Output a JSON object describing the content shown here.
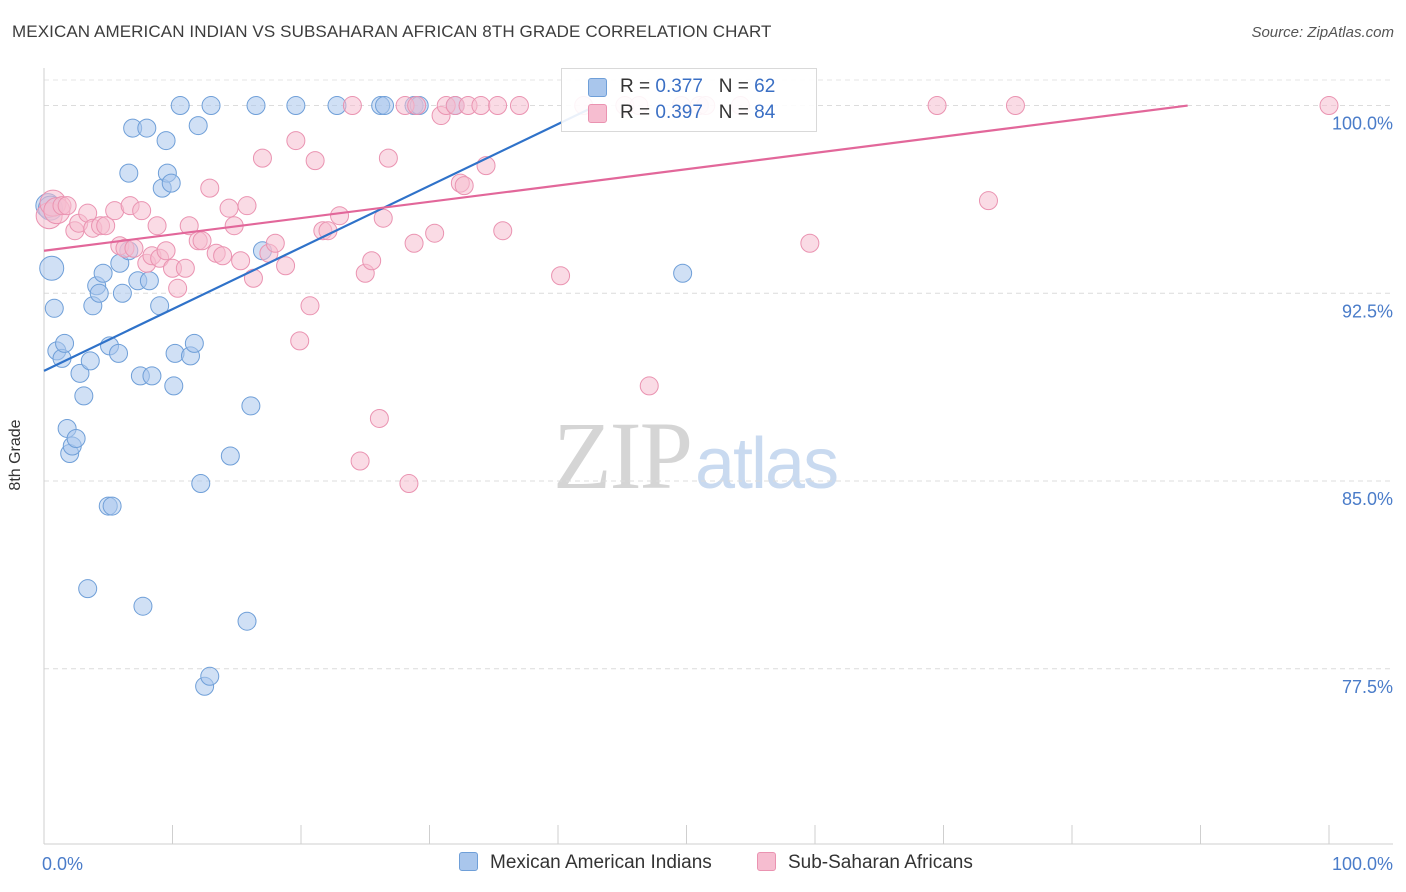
{
  "header": {
    "title": "MEXICAN AMERICAN INDIAN VS SUBSAHARAN AFRICAN 8TH GRADE CORRELATION CHART",
    "source": "Source: ZipAtlas.com"
  },
  "watermark": {
    "zip": "ZIP",
    "atlas": "atlas"
  },
  "legend": {
    "r_label": "R =",
    "n_label": "N =",
    "series1": {
      "r": "0.377",
      "n": "62"
    },
    "series2": {
      "r": "0.397",
      "n": "84"
    }
  },
  "bottom_legend": {
    "series1": "Mexican American Indians",
    "series2": "Sub-Saharan Africans"
  },
  "colors": {
    "blue_fill": "#a9c6ec",
    "blue_stroke": "#6f9fd8",
    "blue_line": "#2f72c9",
    "pink_fill": "#f6bdd0",
    "pink_stroke": "#ea93b1",
    "pink_line": "#e2679a",
    "tick_text": "#4a7cc9"
  },
  "chart_data": {
    "type": "scatter",
    "title": "MEXICAN AMERICAN INDIAN VS SUBSAHARAN AFRICAN 8TH GRADE CORRELATION CHART",
    "xlabel": "",
    "ylabel": "8th Grade",
    "xlim": [
      0,
      100
    ],
    "ylim": [
      70.5,
      101.5
    ],
    "x_tick_labels": [
      "0.0%",
      "100.0%"
    ],
    "y_ticks": [
      100.0,
      92.5,
      85.0,
      77.5
    ],
    "y_tick_labels": [
      "100.0%",
      "92.5%",
      "85.0%",
      "77.5%"
    ],
    "series": [
      {
        "name": "Mexican American Indians",
        "r": 0.377,
        "n": 62,
        "trend": {
          "x0": 0,
          "y0": 89.4,
          "x1": 43,
          "y1": 100.0
        },
        "points": [
          [
            0.3,
            96.0
          ],
          [
            0.5,
            95.9
          ],
          [
            0.6,
            93.5
          ],
          [
            0.8,
            91.9
          ],
          [
            1.0,
            90.2
          ],
          [
            1.4,
            89.9
          ],
          [
            1.6,
            90.5
          ],
          [
            1.8,
            87.1
          ],
          [
            2.0,
            86.1
          ],
          [
            2.2,
            86.4
          ],
          [
            2.5,
            86.7
          ],
          [
            2.8,
            89.3
          ],
          [
            3.1,
            88.4
          ],
          [
            3.4,
            80.7
          ],
          [
            3.6,
            89.8
          ],
          [
            3.8,
            92.0
          ],
          [
            4.1,
            92.8
          ],
          [
            4.3,
            92.5
          ],
          [
            4.6,
            93.3
          ],
          [
            5.0,
            84.0
          ],
          [
            5.3,
            84.0
          ],
          [
            5.1,
            90.4
          ],
          [
            5.8,
            90.1
          ],
          [
            5.9,
            93.7
          ],
          [
            6.1,
            92.5
          ],
          [
            6.6,
            94.2
          ],
          [
            6.6,
            97.3
          ],
          [
            6.9,
            99.1
          ],
          [
            7.3,
            93.0
          ],
          [
            7.5,
            89.2
          ],
          [
            7.7,
            80.0
          ],
          [
            8.0,
            99.1
          ],
          [
            8.2,
            93.0
          ],
          [
            8.4,
            89.2
          ],
          [
            9.0,
            92.0
          ],
          [
            9.2,
            96.7
          ],
          [
            9.5,
            98.6
          ],
          [
            9.6,
            97.3
          ],
          [
            9.9,
            96.9
          ],
          [
            10.1,
            88.8
          ],
          [
            10.2,
            90.1
          ],
          [
            10.6,
            100.0
          ],
          [
            11.4,
            90.0
          ],
          [
            11.7,
            90.5
          ],
          [
            12.0,
            99.2
          ],
          [
            12.2,
            84.9
          ],
          [
            12.5,
            76.8
          ],
          [
            12.9,
            77.2
          ],
          [
            13.0,
            100.0
          ],
          [
            14.5,
            86.0
          ],
          [
            15.8,
            79.4
          ],
          [
            16.1,
            88.0
          ],
          [
            16.5,
            100.0
          ],
          [
            17.0,
            94.2
          ],
          [
            19.6,
            100.0
          ],
          [
            22.8,
            100.0
          ],
          [
            26.2,
            100.0
          ],
          [
            26.5,
            100.0
          ],
          [
            28.8,
            100.0
          ],
          [
            29.2,
            100.0
          ],
          [
            32.0,
            100.0
          ],
          [
            49.7,
            93.3
          ]
        ]
      },
      {
        "name": "Sub-Saharan Africans",
        "r": 0.397,
        "n": 84,
        "trend": {
          "x0": 0,
          "y0": 94.2,
          "x1": 89,
          "y1": 100.0
        },
        "points": [
          [
            0.4,
            95.6
          ],
          [
            0.7,
            96.1
          ],
          [
            1.0,
            95.8
          ],
          [
            1.4,
            96.0
          ],
          [
            1.8,
            96.0
          ],
          [
            2.4,
            95.0
          ],
          [
            2.7,
            95.3
          ],
          [
            3.4,
            95.7
          ],
          [
            3.8,
            95.1
          ],
          [
            4.4,
            95.2
          ],
          [
            4.8,
            95.2
          ],
          [
            5.5,
            95.8
          ],
          [
            5.9,
            94.4
          ],
          [
            6.3,
            94.3
          ],
          [
            6.7,
            96.0
          ],
          [
            7.0,
            94.3
          ],
          [
            7.6,
            95.8
          ],
          [
            8.0,
            93.7
          ],
          [
            8.4,
            94.0
          ],
          [
            8.8,
            95.2
          ],
          [
            9.0,
            93.9
          ],
          [
            9.5,
            94.2
          ],
          [
            10.0,
            93.5
          ],
          [
            10.4,
            92.7
          ],
          [
            11.0,
            93.5
          ],
          [
            11.3,
            95.2
          ],
          [
            12.0,
            94.6
          ],
          [
            12.3,
            94.6
          ],
          [
            12.9,
            96.7
          ],
          [
            13.4,
            94.1
          ],
          [
            13.9,
            94.0
          ],
          [
            14.4,
            95.9
          ],
          [
            14.8,
            95.2
          ],
          [
            15.3,
            93.8
          ],
          [
            15.8,
            96.0
          ],
          [
            16.3,
            93.1
          ],
          [
            17.0,
            97.9
          ],
          [
            17.5,
            94.1
          ],
          [
            18.0,
            94.5
          ],
          [
            18.8,
            93.6
          ],
          [
            19.6,
            98.6
          ],
          [
            19.9,
            90.6
          ],
          [
            20.7,
            92.0
          ],
          [
            21.1,
            97.8
          ],
          [
            21.7,
            95.0
          ],
          [
            22.1,
            95.0
          ],
          [
            23.0,
            95.6
          ],
          [
            24.0,
            100.0
          ],
          [
            24.6,
            85.8
          ],
          [
            25.0,
            93.3
          ],
          [
            25.5,
            93.8
          ],
          [
            26.1,
            87.5
          ],
          [
            26.4,
            95.5
          ],
          [
            26.8,
            97.9
          ],
          [
            28.1,
            100.0
          ],
          [
            28.4,
            84.9
          ],
          [
            28.8,
            94.5
          ],
          [
            29.0,
            100.0
          ],
          [
            30.4,
            94.9
          ],
          [
            30.9,
            99.6
          ],
          [
            31.3,
            100.0
          ],
          [
            32.0,
            100.0
          ],
          [
            32.4,
            96.9
          ],
          [
            32.7,
            96.8
          ],
          [
            33.0,
            100.0
          ],
          [
            34.0,
            100.0
          ],
          [
            34.4,
            97.6
          ],
          [
            35.3,
            100.0
          ],
          [
            35.7,
            95.0
          ],
          [
            37.0,
            100.0
          ],
          [
            40.2,
            93.2
          ],
          [
            42.0,
            100.0
          ],
          [
            45.2,
            100.0
          ],
          [
            46.3,
            100.0
          ],
          [
            47.1,
            88.8
          ],
          [
            49.6,
            100.0
          ],
          [
            51.0,
            100.0
          ],
          [
            51.5,
            100.0
          ],
          [
            54.2,
            100.0
          ],
          [
            59.6,
            94.5
          ],
          [
            69.5,
            100.0
          ],
          [
            73.5,
            96.2
          ],
          [
            75.6,
            100.0
          ],
          [
            100.0,
            100.0
          ]
        ]
      }
    ]
  }
}
